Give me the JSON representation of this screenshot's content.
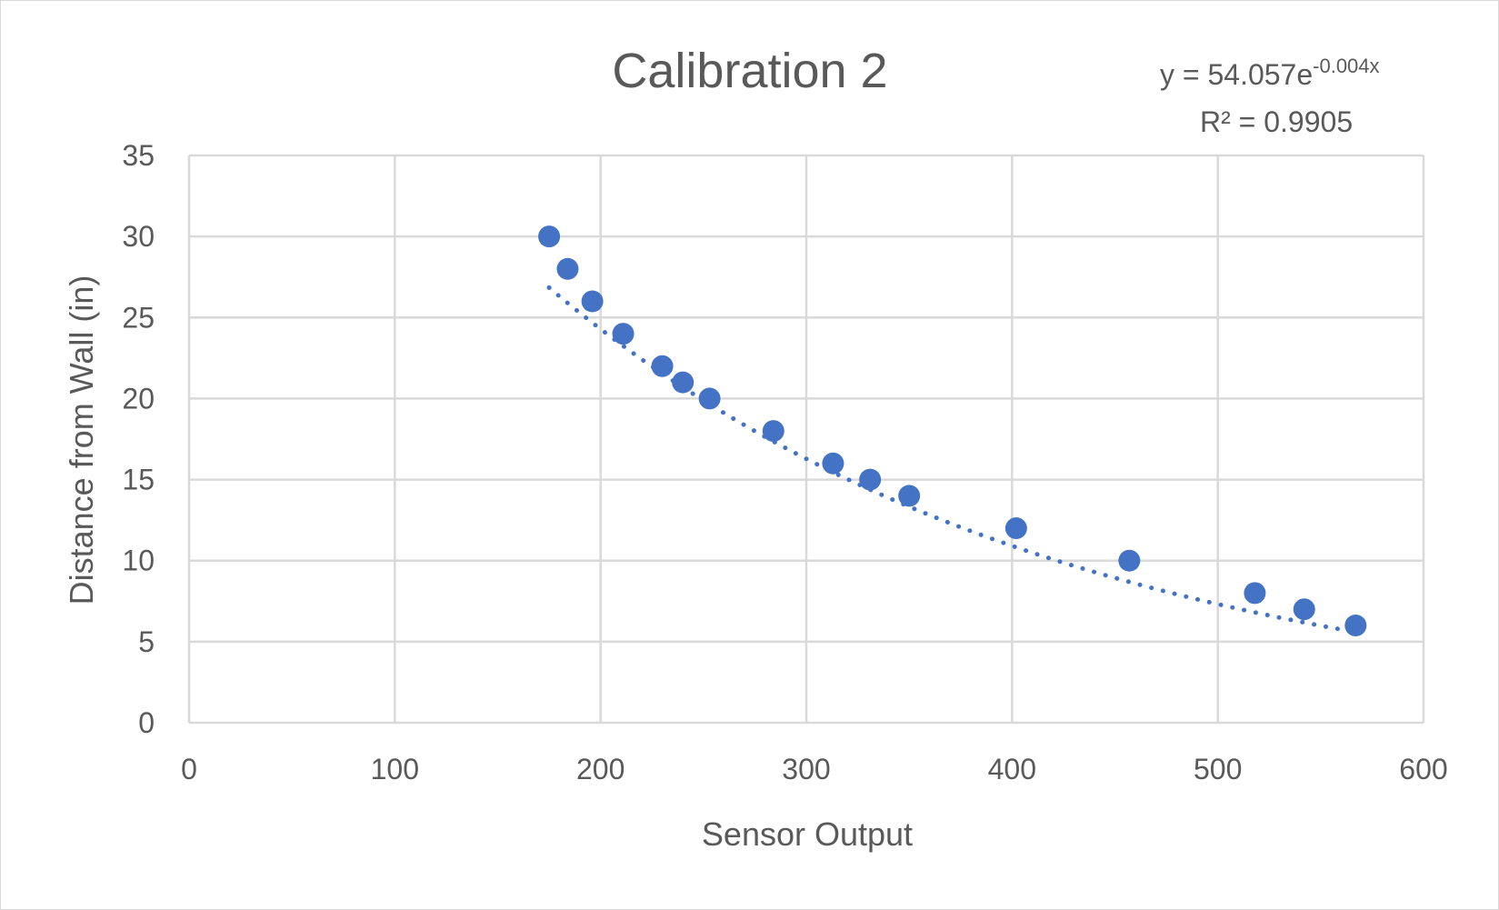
{
  "chart_data": {
    "type": "scatter",
    "title": "Calibration 2",
    "xlabel": "Sensor Output",
    "ylabel": "Distance from Wall (in)",
    "xlim": [
      0,
      600
    ],
    "ylim": [
      0,
      35
    ],
    "x_ticks": [
      0,
      100,
      200,
      300,
      400,
      500,
      600
    ],
    "y_ticks": [
      0,
      5,
      10,
      15,
      20,
      25,
      30,
      35
    ],
    "grid": true,
    "legend": "none",
    "series": [
      {
        "color": "#4472c4",
        "points": [
          {
            "x": 175,
            "y": 30
          },
          {
            "x": 184,
            "y": 28
          },
          {
            "x": 196,
            "y": 26
          },
          {
            "x": 211,
            "y": 24
          },
          {
            "x": 230,
            "y": 22
          },
          {
            "x": 240,
            "y": 21
          },
          {
            "x": 253,
            "y": 20
          },
          {
            "x": 284,
            "y": 18
          },
          {
            "x": 313,
            "y": 16
          },
          {
            "x": 331,
            "y": 15
          },
          {
            "x": 350,
            "y": 14
          },
          {
            "x": 402,
            "y": 12
          },
          {
            "x": 457,
            "y": 10
          },
          {
            "x": 518,
            "y": 8
          },
          {
            "x": 542,
            "y": 7
          },
          {
            "x": 567,
            "y": 6
          }
        ]
      }
    ],
    "trendline": {
      "type": "exponential",
      "style": "dotted",
      "color": "#4472c4",
      "a": 54.057,
      "b": -0.004,
      "x_range": [
        175,
        567
      ],
      "equation_base": "y = 54.057e",
      "equation_exponent": "-0.004x",
      "r_squared_label": "R² = 0.9905"
    }
  }
}
